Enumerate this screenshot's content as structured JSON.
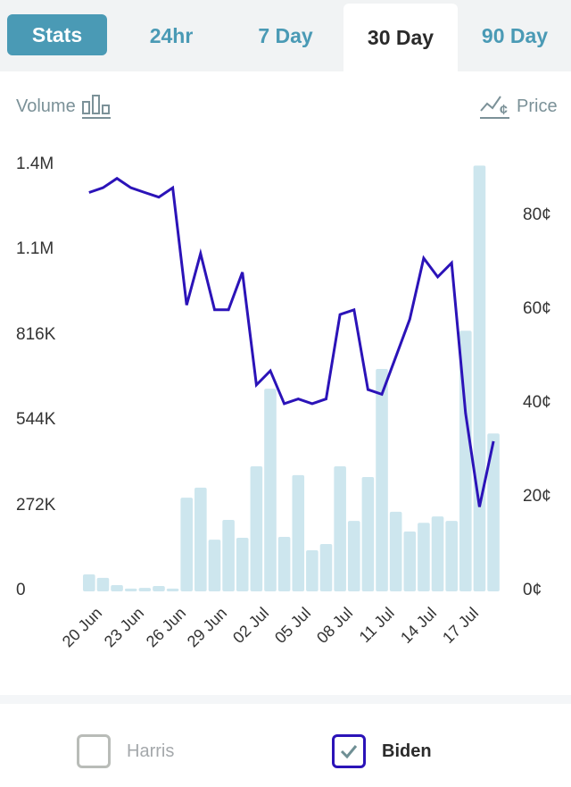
{
  "tabs": [
    {
      "label": "Stats",
      "state": "button"
    },
    {
      "label": "24hr",
      "state": "inactive"
    },
    {
      "label": "7 Day",
      "state": "inactive"
    },
    {
      "label": "30 Day",
      "state": "active"
    },
    {
      "label": "90 Day",
      "state": "inactive"
    }
  ],
  "toggles": {
    "volume_label": "Volume",
    "price_label": "Price"
  },
  "legend": [
    {
      "label": "Harris",
      "checked": false,
      "color": "#b9bcb8"
    },
    {
      "label": "Biden",
      "checked": true,
      "color": "#2b13b8"
    }
  ],
  "colors": {
    "accent": "#4a9ab5",
    "bar": "#cde6ee",
    "line": "#2b13b8"
  },
  "chart_data": {
    "type": "bar+line",
    "title": "",
    "categories": [
      "20 Jun",
      "21 Jun",
      "22 Jun",
      "23 Jun",
      "24 Jun",
      "25 Jun",
      "26 Jun",
      "27 Jun",
      "28 Jun",
      "29 Jun",
      "30 Jun",
      "01 Jul",
      "02 Jul",
      "03 Jul",
      "04 Jul",
      "05 Jul",
      "06 Jul",
      "07 Jul",
      "08 Jul",
      "09 Jul",
      "10 Jul",
      "11 Jul",
      "12 Jul",
      "13 Jul",
      "14 Jul",
      "15 Jul",
      "16 Jul",
      "17 Jul",
      "18 Jul",
      "19 Jul"
    ],
    "x_tick_labels": [
      "20 Jun",
      "23 Jun",
      "26 Jun",
      "29 Jun",
      "02 Jul",
      "05 Jul",
      "08 Jul",
      "11 Jul",
      "14 Jul",
      "17 Jul"
    ],
    "series": [
      {
        "name": "Volume",
        "type": "bar",
        "axis": "left",
        "values": [
          54000,
          43000,
          20000,
          9000,
          11000,
          17000,
          9000,
          299000,
          331000,
          165000,
          228000,
          171000,
          399000,
          647000,
          174000,
          371000,
          131000,
          151000,
          399000,
          225000,
          365000,
          710000,
          254000,
          191000,
          219000,
          239000,
          225000,
          832000,
          1359000,
          504000
        ]
      },
      {
        "name": "Biden Price",
        "type": "line",
        "axis": "right",
        "values": [
          85,
          86,
          88,
          86,
          85,
          84,
          86,
          61,
          72,
          60,
          60,
          68,
          44,
          47,
          40,
          41,
          40,
          41,
          59,
          60,
          43,
          42,
          50,
          58,
          71,
          67,
          70,
          38,
          18,
          32
        ]
      }
    ],
    "y_left": {
      "ticks": [
        "0",
        "272K",
        "544K",
        "816K",
        "1.1M",
        "1.4M"
      ],
      "tick_values": [
        0,
        272000,
        544000,
        816000,
        1088000,
        1360000
      ],
      "ylim": [
        0,
        1360000
      ],
      "label": "Volume"
    },
    "y_right": {
      "ticks": [
        "0¢",
        "20¢",
        "40¢",
        "60¢",
        "80¢"
      ],
      "tick_values": [
        0,
        20,
        40,
        60,
        80
      ],
      "ylim": [
        0,
        90.8
      ],
      "label": "Price"
    },
    "grid": false,
    "legend": "bottom"
  }
}
